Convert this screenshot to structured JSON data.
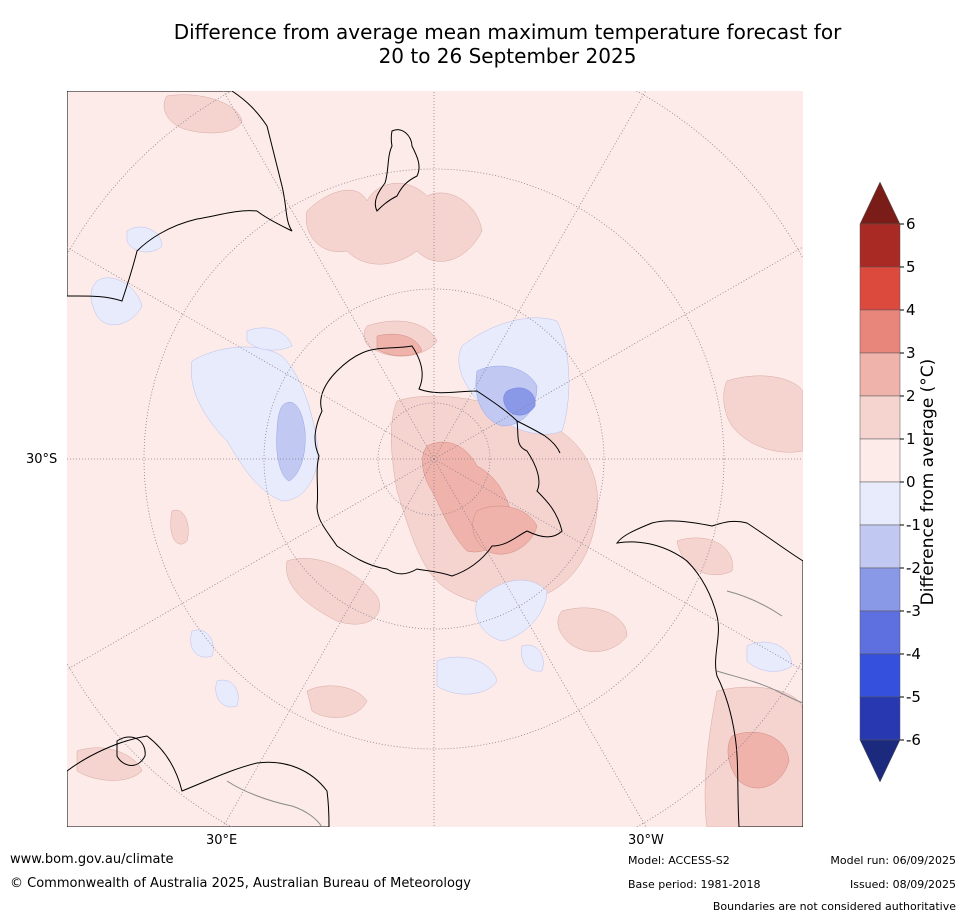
{
  "title": {
    "line1": "Difference from average mean maximum temperature forecast for",
    "line2": "20 to 26 September 2025"
  },
  "map": {
    "projection": "south-polar-stereographic",
    "labels": {
      "lat_30s": "30°S",
      "lon_30e": "30°E",
      "lon_30w": "30°W"
    },
    "colors": {
      "background_anomaly_0_1": "#fcebe8",
      "coast": "#000000",
      "borders": "#8a8a8a",
      "graticule": "#8a7f90"
    }
  },
  "colorbar": {
    "label": "Difference from average (°C)",
    "ticks": [
      "6",
      "5",
      "4",
      "3",
      "2",
      "1",
      "0",
      "-1",
      "-2",
      "-3",
      "-4",
      "-5",
      "-6"
    ],
    "bins": [
      {
        "range": "above 6",
        "color": "#7a1d19"
      },
      {
        "range": "5 to 6",
        "color": "#a92a24"
      },
      {
        "range": "4 to 5",
        "color": "#dc4a3e"
      },
      {
        "range": "3 to 4",
        "color": "#e8867c"
      },
      {
        "range": "2 to 3",
        "color": "#efb3ab"
      },
      {
        "range": "1 to 2",
        "color": "#f5d4d0"
      },
      {
        "range": "0 to 1",
        "color": "#fcebe8"
      },
      {
        "range": "-1 to 0",
        "color": "#e8ebfb"
      },
      {
        "range": "-2 to -1",
        "color": "#c1c8f1"
      },
      {
        "range": "-3 to -2",
        "color": "#8a98e8"
      },
      {
        "range": "-4 to -3",
        "color": "#5e70df"
      },
      {
        "range": "-5 to -4",
        "color": "#3550dd"
      },
      {
        "range": "-6 to -5",
        "color": "#2838b0"
      },
      {
        "range": "below -6",
        "color": "#1c2a7e"
      }
    ]
  },
  "footer": {
    "website": "www.bom.gov.au/climate",
    "copyright": "© Commonwealth of Australia 2025, Australian Bureau of Meteorology",
    "model": "Model: ACCESS-S2",
    "base_period": "Base period: 1981-2018",
    "model_run": "Model run: 06/09/2025",
    "issued": "Issued: 08/09/2025",
    "disclaimer": "Boundaries are not considered authoritative"
  }
}
